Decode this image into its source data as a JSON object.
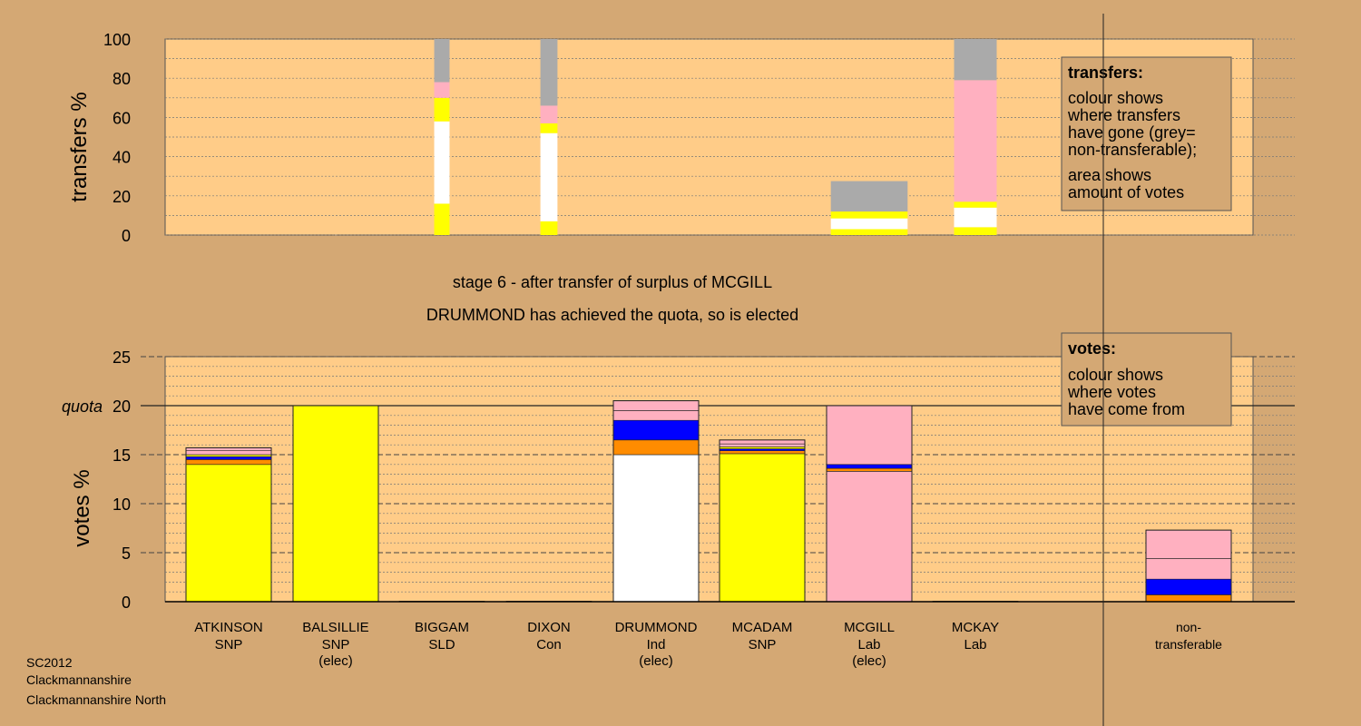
{
  "colors": {
    "page_bg": "#d4a874",
    "plot_bg": "#ffcc88",
    "SNP": "#ffff00",
    "Ind": "#ffffff",
    "Lab": "#ffb0c0",
    "SLD": "#ff8c00",
    "Con": "#0000ff",
    "non_transferable": "#aaaaaa"
  },
  "stage_title": "stage 6 - after transfer of surplus of MCGILL",
  "stage_subtitle": "DRUMMOND has achieved the quota, so is elected",
  "footer": [
    "SC2012",
    "Clackmannanshire",
    "Clackmannanshire North"
  ],
  "chart_data": [
    {
      "type": "bar",
      "name": "transfers",
      "ylabel": "transfers %",
      "ylim": [
        0,
        100
      ],
      "yticks": [
        0,
        20,
        40,
        60,
        80,
        100
      ],
      "grid": true,
      "legend": {
        "title": "transfers:",
        "lines": [
          "colour shows",
          "where transfers",
          "have gone (grey=",
          "non-transferable);"
        ],
        "lines2": [
          "area shows",
          "amount of votes"
        ],
        "placement": "top-right"
      },
      "categories": [
        "ATKINSON",
        "BALSILLIE",
        "BIGGAM",
        "DIXON",
        "DRUMMOND",
        "MCADAM",
        "MCGILL",
        "MCKAY",
        "non-transferable"
      ],
      "bars": [
        {
          "category": "ATKINSON",
          "width_share": 0,
          "segments": []
        },
        {
          "category": "BALSILLIE",
          "width_share": 0.02,
          "segments": []
        },
        {
          "category": "BIGGAM",
          "width_share": 0.18,
          "segments": [
            {
              "color": "#ffff00",
              "value": 16
            },
            {
              "color": "#ffffff",
              "value": 42
            },
            {
              "color": "#ffff00",
              "value": 12
            },
            {
              "color": "#ffb0c0",
              "value": 8
            },
            {
              "color": "#aaaaaa",
              "value": 22
            }
          ]
        },
        {
          "category": "DIXON",
          "width_share": 0.2,
          "segments": [
            {
              "color": "#ffff00",
              "value": 7
            },
            {
              "color": "#ffffff",
              "value": 45
            },
            {
              "color": "#ffff00",
              "value": 5
            },
            {
              "color": "#ffb0c0",
              "value": 9
            },
            {
              "color": "#aaaaaa",
              "value": 34
            }
          ]
        },
        {
          "category": "DRUMMOND",
          "width_share": 0,
          "segments": []
        },
        {
          "category": "MCADAM",
          "width_share": 0,
          "segments": []
        },
        {
          "category": "MCGILL",
          "width_share": 0.9,
          "segments": [
            {
              "color": "#ffff00",
              "value": 3
            },
            {
              "color": "#ffffff",
              "value": 5.5
            },
            {
              "color": "#ffff00",
              "value": 3.5
            },
            {
              "color": "#aaaaaa",
              "value": 15.5
            }
          ]
        },
        {
          "category": "MCKAY",
          "width_share": 0.5,
          "segments": [
            {
              "color": "#ffff00",
              "value": 4
            },
            {
              "color": "#ffffff",
              "value": 10
            },
            {
              "color": "#ffff00",
              "value": 3
            },
            {
              "color": "#ffb0c0",
              "value": 62
            },
            {
              "color": "#aaaaaa",
              "value": 21
            }
          ]
        }
      ]
    },
    {
      "type": "bar",
      "name": "votes",
      "ylabel": "votes %",
      "ylim": [
        0,
        25
      ],
      "yticks": [
        0,
        5,
        10,
        15,
        20,
        25
      ],
      "quota": 20,
      "quota_label": "quota",
      "grid": true,
      "legend": {
        "title": "votes:",
        "lines": [
          "colour shows",
          "where votes",
          "have come from"
        ],
        "placement": "top-right"
      },
      "categories": [
        {
          "name": "ATKINSON",
          "party": "SNP",
          "note": ""
        },
        {
          "name": "BALSILLIE",
          "party": "SNP",
          "note": "(elec)"
        },
        {
          "name": "BIGGAM",
          "party": "SLD",
          "note": ""
        },
        {
          "name": "DIXON",
          "party": "Con",
          "note": ""
        },
        {
          "name": "DRUMMOND",
          "party": "Ind",
          "note": "(elec)"
        },
        {
          "name": "MCADAM",
          "party": "SNP",
          "note": ""
        },
        {
          "name": "MCGILL",
          "party": "Lab",
          "note": "(elec)"
        },
        {
          "name": "MCKAY",
          "party": "Lab",
          "note": ""
        },
        {
          "name": "non-",
          "party": "transferable",
          "note": ""
        }
      ],
      "stacks": [
        [
          {
            "color": "#ffff00",
            "value": 14.0
          },
          {
            "color": "#ff8c00",
            "value": 0.5
          },
          {
            "color": "#0000ff",
            "value": 0.3
          },
          {
            "color": "#ffff00",
            "value": 0.2
          },
          {
            "color": "#ffb0c0",
            "value": 0.4
          },
          {
            "color": "#ffb0c0",
            "value": 0.3
          }
        ],
        [
          {
            "color": "#ffff00",
            "value": 20.0
          }
        ],
        [
          {
            "color": "#ff8c00",
            "value": 0.05
          }
        ],
        [
          {
            "color": "#0000ff",
            "value": 0.05
          }
        ],
        [
          {
            "color": "#ffffff",
            "value": 15.0
          },
          {
            "color": "#ff8c00",
            "value": 1.5
          },
          {
            "color": "#0000ff",
            "value": 2.0
          },
          {
            "color": "#ffb0c0",
            "value": 1.0
          },
          {
            "color": "#ffb0c0",
            "value": 1.0
          }
        ],
        [
          {
            "color": "#ffff00",
            "value": 15.1
          },
          {
            "color": "#ff8c00",
            "value": 0.3
          },
          {
            "color": "#0000ff",
            "value": 0.2
          },
          {
            "color": "#ffff00",
            "value": 0.2
          },
          {
            "color": "#ffb0c0",
            "value": 0.3
          },
          {
            "color": "#ffb0c0",
            "value": 0.4
          }
        ],
        [
          {
            "color": "#ffb0c0",
            "value": 13.3
          },
          {
            "color": "#ff8c00",
            "value": 0.3
          },
          {
            "color": "#0000ff",
            "value": 0.4
          },
          {
            "color": "#ffb0c0",
            "value": 6.0
          }
        ],
        [
          {
            "color": "#ffb0c0",
            "value": 0.05
          }
        ],
        [
          {
            "color": "#ff8c00",
            "value": 0.7
          },
          {
            "color": "#0000ff",
            "value": 1.6
          },
          {
            "color": "#ffb0c0",
            "value": 2.1
          },
          {
            "color": "#ffb0c0",
            "value": 2.9
          }
        ]
      ]
    }
  ]
}
